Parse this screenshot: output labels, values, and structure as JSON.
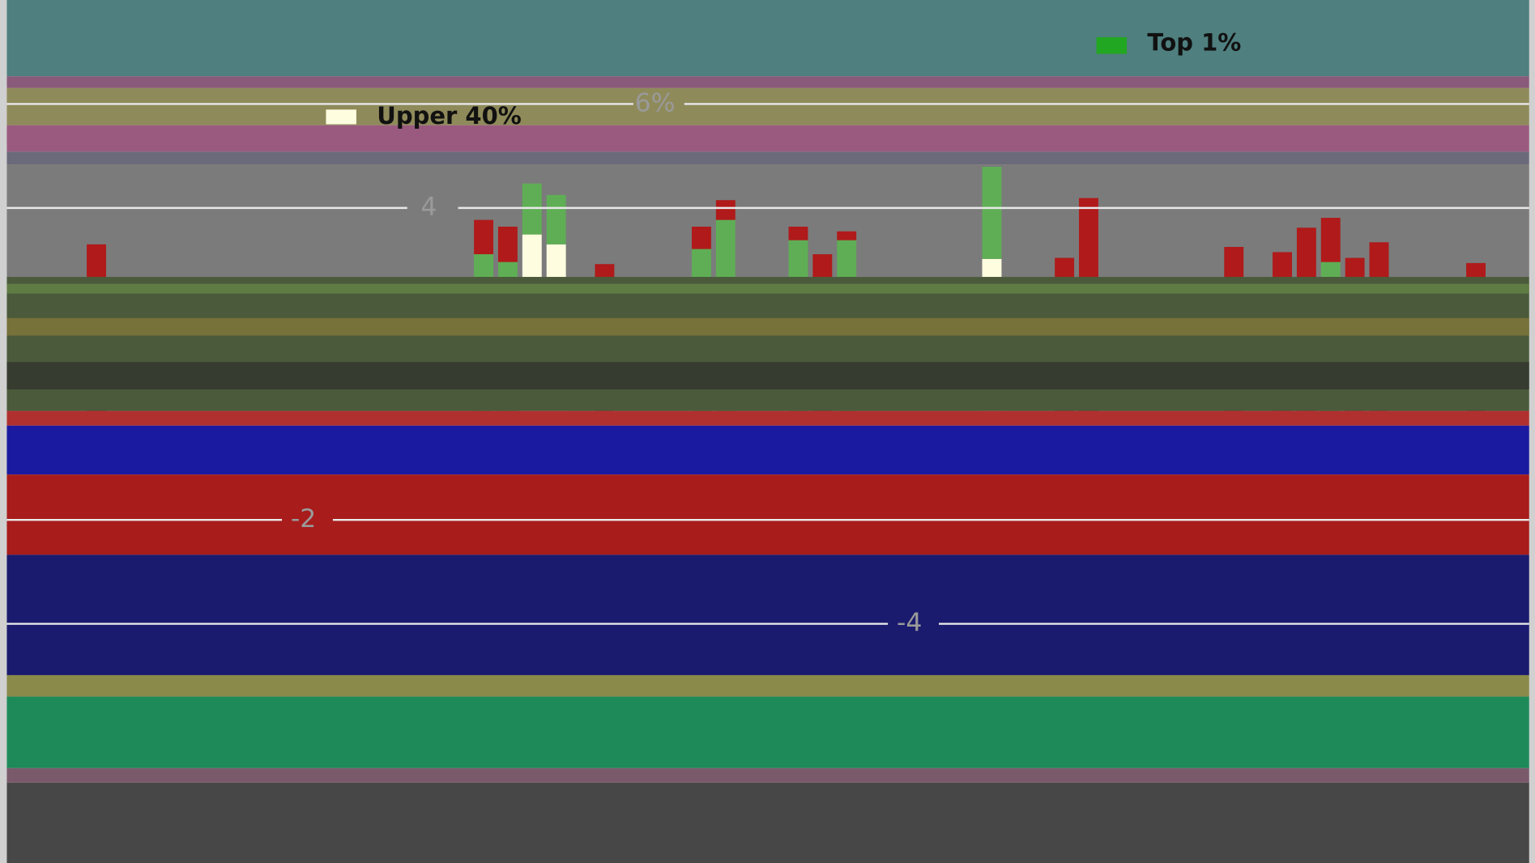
{
  "chart_data": {
    "type": "bar",
    "stacked": true,
    "x": [
      0,
      16,
      17,
      18,
      19,
      21,
      25,
      26,
      29,
      30,
      31,
      37,
      40,
      41,
      47,
      49,
      50,
      51,
      52,
      53,
      57
    ],
    "xlim": [
      -3.7,
      59.2
    ],
    "ylim": [
      -8.6,
      8.0
    ],
    "yticks": [
      {
        "value": 6,
        "label": "6%"
      },
      4,
      -2,
      -4
    ],
    "grid": true,
    "series": [
      {
        "name": "Upper 40%",
        "color": "#fffde0",
        "values": [
          null,
          null,
          null,
          3.49,
          3.3,
          null,
          null,
          null,
          null,
          null,
          null,
          3.02,
          null,
          null,
          null,
          null,
          null,
          null,
          null,
          null,
          null
        ]
      },
      {
        "name": "Top 1%",
        "color": "#5fae55",
        "values": [
          null,
          3.11,
          2.96,
          0.98,
          0.95,
          null,
          3.21,
          3.77,
          3.38,
          null,
          3.38,
          1.77,
          null,
          null,
          null,
          null,
          null,
          2.96,
          null,
          null,
          null
        ]
      },
      {
        "color": "#b01a1a",
        "values": [
          3.3,
          0.66,
          0.68,
          null,
          null,
          2.92,
          0.43,
          0.38,
          0.26,
          3.11,
          0.17,
          null,
          3.04,
          4.19,
          3.25,
          3.15,
          3.62,
          0.85,
          3.04,
          3.34,
          2.94
        ]
      }
    ]
  }
}
